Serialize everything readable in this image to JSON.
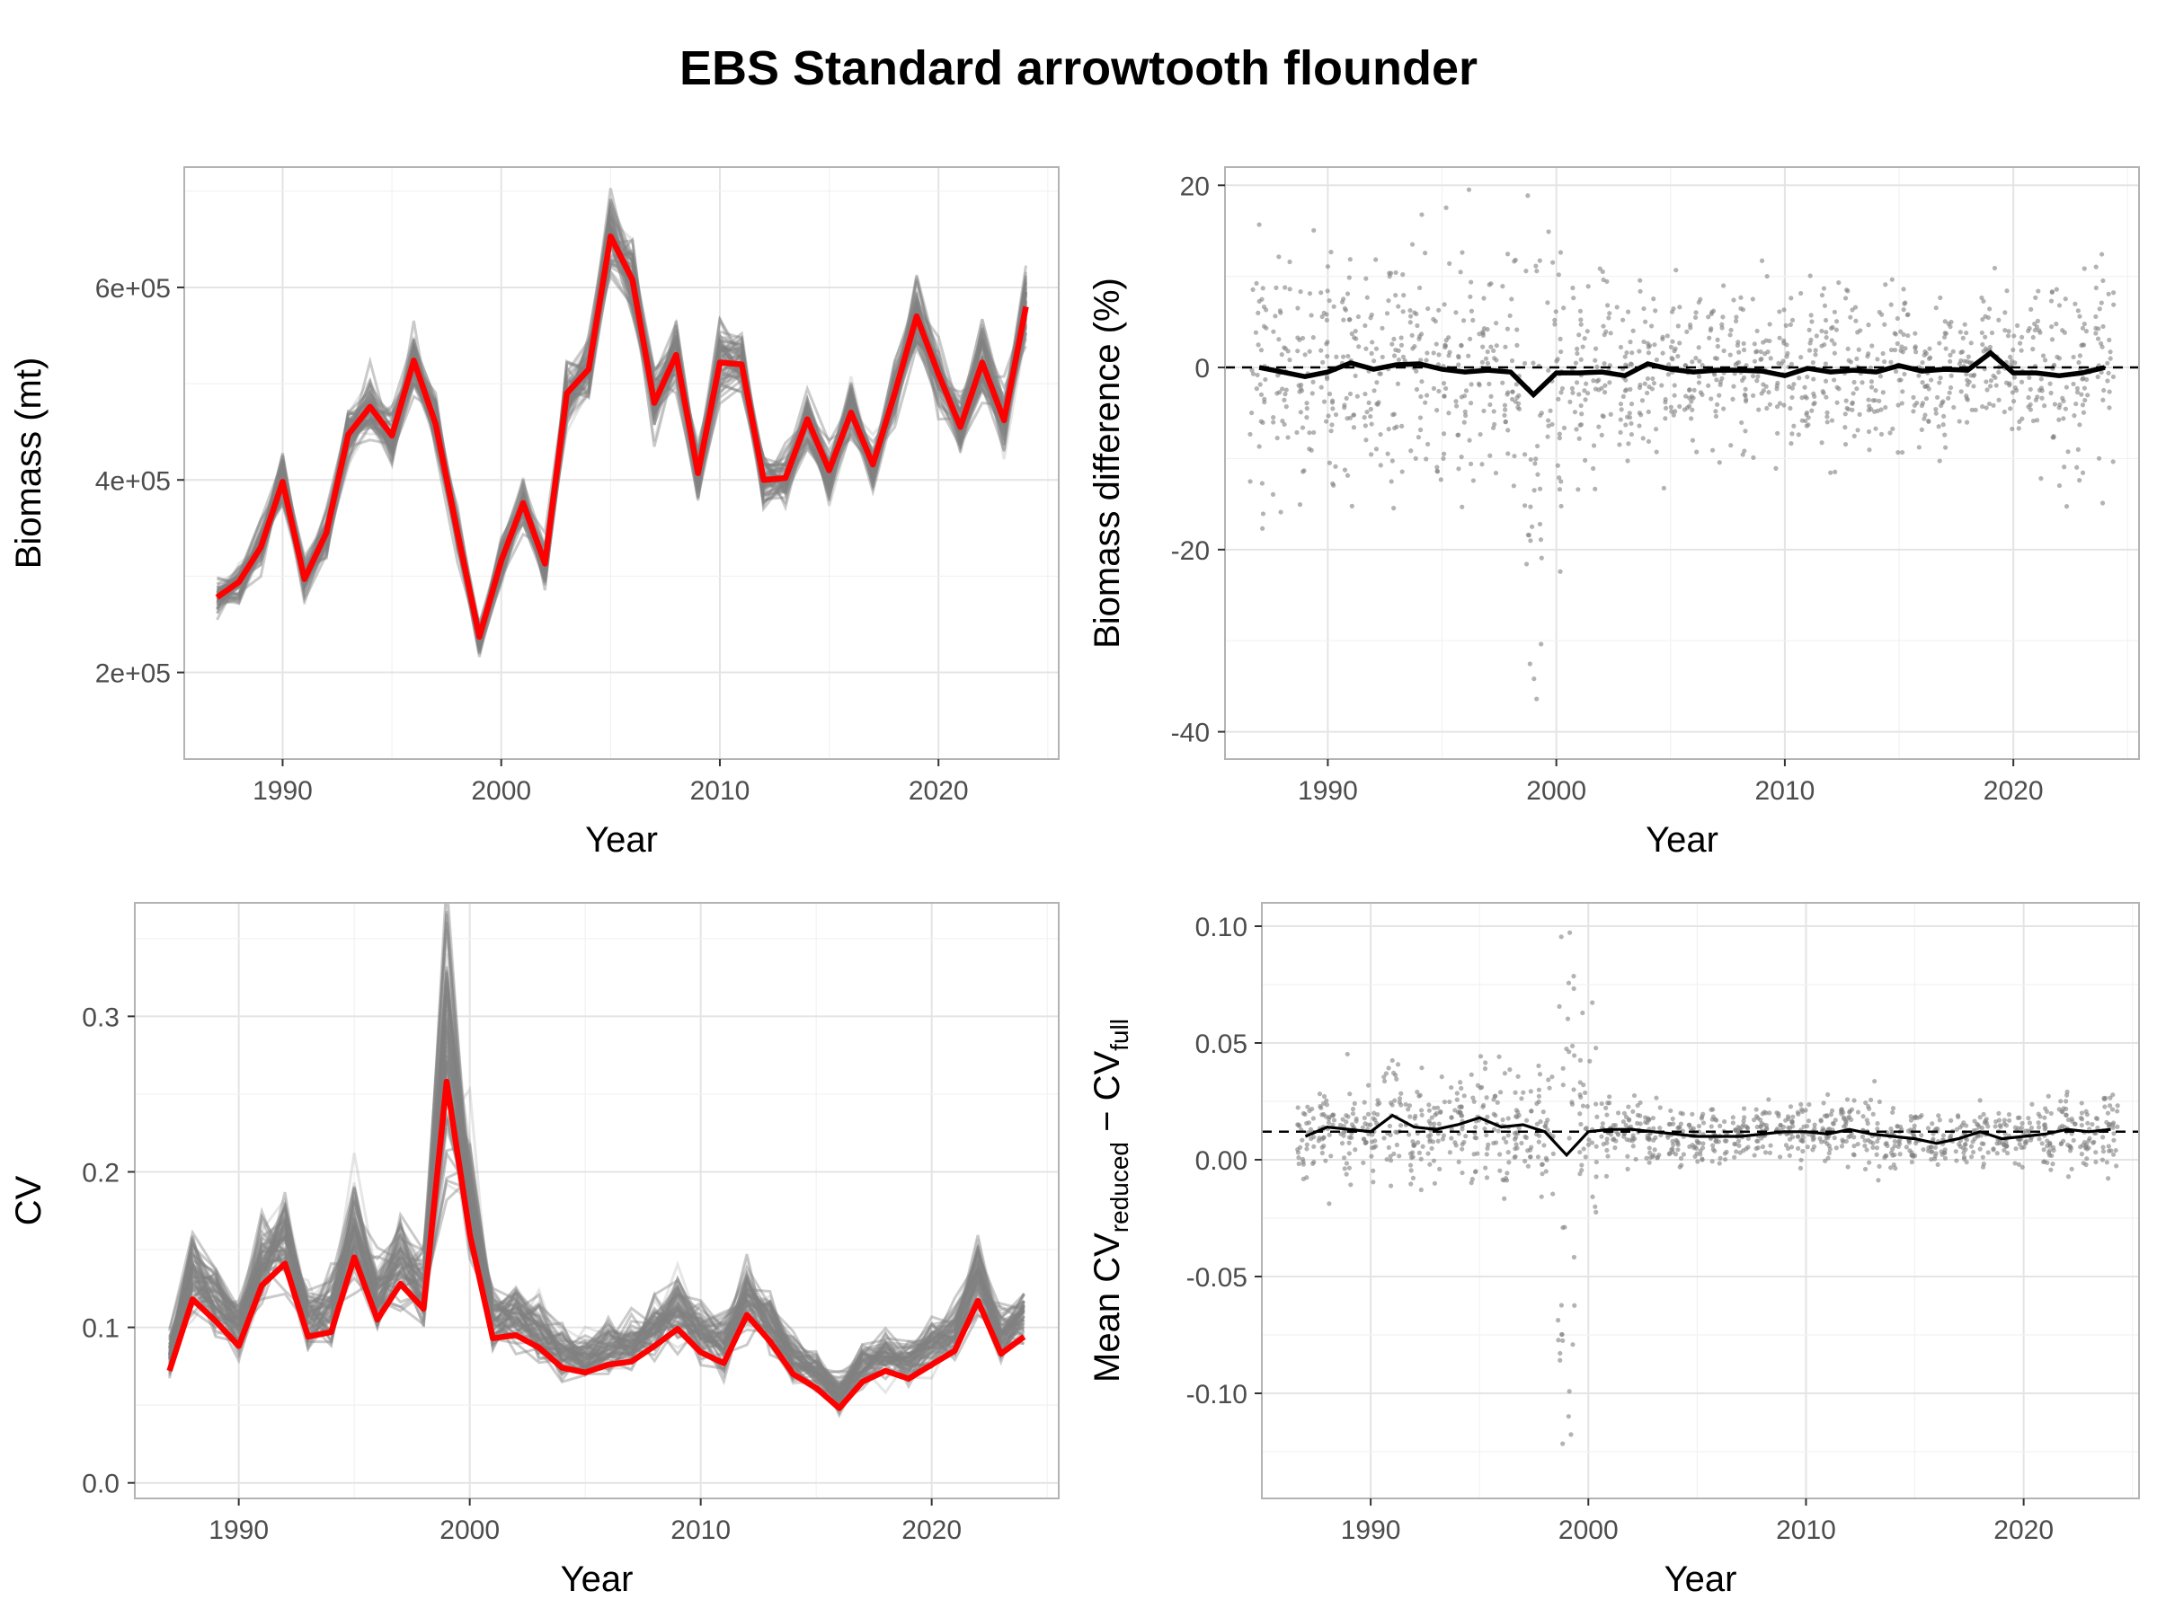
{
  "title": "EBS Standard arrowtooth flounder",
  "colors": {
    "highlight": "#ff0000",
    "replicate": "#808080",
    "mean": "#000000",
    "grid": "#ebebeb",
    "border": "#b3b3b3"
  },
  "chart_data": [
    {
      "type": "line",
      "id": "biomass",
      "xlabel": "Year",
      "ylabel": "Biomass (mt)",
      "xlim": [
        1985.5,
        2025.5
      ],
      "ylim": [
        110000,
        725000
      ],
      "xticks": [
        1990,
        2000,
        2010,
        2020
      ],
      "xtick_labels": [
        "1990",
        "2000",
        "2010",
        "2020"
      ],
      "yticks": [
        200000,
        400000,
        600000
      ],
      "ytick_labels": [
        "2e+05",
        "4e+05",
        "6e+05"
      ],
      "x": [
        1987,
        1988,
        1989,
        1990,
        1991,
        1992,
        1993,
        1994,
        1995,
        1996,
        1997,
        1998,
        1999,
        2000,
        2001,
        2002,
        2003,
        2004,
        2005,
        2006,
        2007,
        2008,
        2009,
        2010,
        2011,
        2012,
        2013,
        2014,
        2015,
        2016,
        2017,
        2018,
        2019,
        2020,
        2021,
        2022,
        2023,
        2024
      ],
      "series": [
        {
          "role": "full survey",
          "color": "#ff0000",
          "values": [
            278000,
            294000,
            330000,
            398000,
            297000,
            345000,
            447000,
            476000,
            446000,
            524000,
            458000,
            345000,
            237000,
            316000,
            376000,
            313000,
            490000,
            515000,
            653000,
            608000,
            480000,
            530000,
            407000,
            522000,
            520000,
            400000,
            402000,
            463000,
            410000,
            470000,
            416000,
            490000,
            570000,
            510000,
            455000,
            522000,
            462000,
            580000
          ]
        }
      ],
      "replicate_band": {
        "color": "#808080",
        "count": 60
      }
    },
    {
      "type": "scatter",
      "id": "biomass-difference",
      "xlabel": "Year",
      "ylabel": "Biomass difference (%)",
      "xlim": [
        1985.5,
        2025.5
      ],
      "ylim": [
        -43,
        22
      ],
      "xticks": [
        1990,
        2000,
        2010,
        2020
      ],
      "xtick_labels": [
        "1990",
        "2000",
        "2010",
        "2020"
      ],
      "yticks": [
        -40,
        -20,
        0,
        20
      ],
      "ytick_labels": [
        "-40",
        "-20",
        "0",
        "20"
      ],
      "reference_line": 0,
      "x": [
        1987,
        1988,
        1989,
        1990,
        1991,
        1992,
        1993,
        1994,
        1995,
        1996,
        1997,
        1998,
        1999,
        2000,
        2001,
        2002,
        2003,
        2004,
        2005,
        2006,
        2007,
        2008,
        2009,
        2010,
        2011,
        2012,
        2013,
        2014,
        2015,
        2016,
        2017,
        2018,
        2019,
        2020,
        2021,
        2022,
        2023,
        2024
      ],
      "mean_line": [
        0,
        -0.5,
        -1,
        -0.5,
        0.5,
        -0.2,
        0.3,
        0.4,
        -0.2,
        -0.5,
        -0.3,
        -0.5,
        -3,
        -0.6,
        -0.6,
        -0.5,
        -0.9,
        0.4,
        -0.2,
        -0.5,
        -0.3,
        -0.3,
        -0.4,
        -0.9,
        -0.1,
        -0.5,
        -0.3,
        -0.5,
        0.2,
        -0.4,
        -0.2,
        -0.3,
        1.6,
        -0.6,
        -0.6,
        -0.9,
        -0.6,
        0
      ],
      "spread": [
        7,
        7,
        7,
        6.5,
        7,
        6.5,
        6,
        6,
        7,
        7,
        6.5,
        6,
        12,
        9,
        6,
        5.5,
        5,
        5,
        5,
        4.5,
        4.5,
        4.5,
        4.5,
        4.5,
        4.5,
        5,
        5,
        4.5,
        4.5,
        4.5,
        4,
        4,
        4,
        4,
        5,
        6,
        5.5,
        6
      ]
    },
    {
      "type": "line",
      "id": "cv",
      "xlabel": "Year",
      "ylabel": "CV",
      "xlim": [
        1985.5,
        2025.5
      ],
      "ylim": [
        -0.01,
        0.373
      ],
      "xticks": [
        1990,
        2000,
        2010,
        2020
      ],
      "xtick_labels": [
        "1990",
        "2000",
        "2010",
        "2020"
      ],
      "yticks": [
        0.0,
        0.1,
        0.2,
        0.3
      ],
      "ytick_labels": [
        "0.0",
        "0.1",
        "0.2",
        "0.3"
      ],
      "x": [
        1987,
        1988,
        1989,
        1990,
        1991,
        1992,
        1993,
        1994,
        1995,
        1996,
        1997,
        1998,
        1999,
        2000,
        2001,
        2002,
        2003,
        2004,
        2005,
        2006,
        2007,
        2008,
        2009,
        2010,
        2011,
        2012,
        2013,
        2014,
        2015,
        2016,
        2017,
        2018,
        2019,
        2020,
        2021,
        2022,
        2023,
        2024
      ],
      "series": [
        {
          "role": "full survey",
          "color": "#ff0000",
          "values": [
            0.072,
            0.118,
            0.104,
            0.088,
            0.127,
            0.141,
            0.094,
            0.097,
            0.145,
            0.105,
            0.128,
            0.112,
            0.258,
            0.16,
            0.093,
            0.095,
            0.087,
            0.074,
            0.071,
            0.076,
            0.078,
            0.088,
            0.099,
            0.084,
            0.077,
            0.108,
            0.091,
            0.07,
            0.061,
            0.048,
            0.065,
            0.072,
            0.067,
            0.076,
            0.085,
            0.117,
            0.083,
            0.094
          ]
        }
      ],
      "replicate_band": {
        "color": "#808080",
        "count": 60
      }
    },
    {
      "type": "scatter",
      "id": "mean-cv-difference",
      "xlabel": "Year",
      "ylabel": "Mean CV reduced − CV full",
      "ylabel_parts": {
        "main": "Mean CV",
        "sub1": "reduced",
        "minus": " − CV",
        "sub2": "full"
      },
      "xlim": [
        1985,
        2025.3
      ],
      "ylim": [
        -0.145,
        0.11
      ],
      "xticks": [
        1990,
        2000,
        2010,
        2020
      ],
      "xtick_labels": [
        "1990",
        "2000",
        "2010",
        "2020"
      ],
      "yticks": [
        -0.1,
        -0.05,
        0.0,
        0.05,
        0.1
      ],
      "ytick_labels": [
        "-0.10",
        "-0.05",
        "0.00",
        "0.05",
        "0.10"
      ],
      "reference_line": 0.012,
      "x": [
        1987,
        1988,
        1989,
        1990,
        1991,
        1992,
        1993,
        1994,
        1995,
        1996,
        1997,
        1998,
        1999,
        2000,
        2001,
        2002,
        2003,
        2004,
        2005,
        2006,
        2007,
        2008,
        2009,
        2010,
        2011,
        2012,
        2013,
        2014,
        2015,
        2016,
        2017,
        2018,
        2019,
        2020,
        2021,
        2022,
        2023,
        2024
      ],
      "mean_line": [
        0.01,
        0.014,
        0.013,
        0.012,
        0.019,
        0.014,
        0.013,
        0.015,
        0.018,
        0.014,
        0.015,
        0.012,
        0.002,
        0.012,
        0.013,
        0.013,
        0.012,
        0.011,
        0.01,
        0.01,
        0.01,
        0.011,
        0.012,
        0.012,
        0.011,
        0.013,
        0.011,
        0.01,
        0.009,
        0.007,
        0.009,
        0.012,
        0.009,
        0.01,
        0.011,
        0.013,
        0.012,
        0.013
      ],
      "spread": [
        0.008,
        0.012,
        0.012,
        0.01,
        0.014,
        0.016,
        0.01,
        0.01,
        0.014,
        0.014,
        0.012,
        0.02,
        0.05,
        0.02,
        0.008,
        0.007,
        0.006,
        0.006,
        0.006,
        0.006,
        0.006,
        0.006,
        0.006,
        0.006,
        0.006,
        0.008,
        0.008,
        0.006,
        0.006,
        0.006,
        0.006,
        0.006,
        0.006,
        0.006,
        0.008,
        0.009,
        0.008,
        0.008
      ]
    }
  ]
}
